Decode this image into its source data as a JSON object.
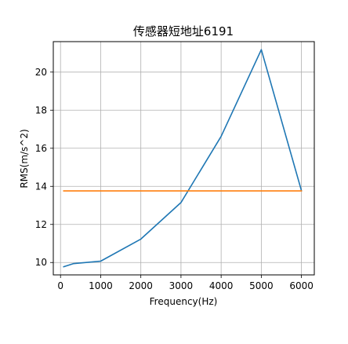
{
  "chart_data": {
    "type": "line",
    "title": "传感器短地址6191",
    "xlabel": "Frequency(Hz)",
    "ylabel": "RMS(m/s^2)",
    "xlim": [
      -180,
      6320
    ],
    "ylim": [
      9.35,
      21.6
    ],
    "xticks": [
      0,
      1000,
      2000,
      3000,
      4000,
      5000,
      6000
    ],
    "xtick_labels": [
      "0",
      "1000",
      "2000",
      "3000",
      "4000",
      "5000",
      "6000"
    ],
    "yticks": [
      10,
      12,
      14,
      16,
      18,
      20
    ],
    "ytick_labels": [
      "10",
      "12",
      "14",
      "16",
      "18",
      "20"
    ],
    "grid": true,
    "legend": "none",
    "series": [
      {
        "color": "#1f77b4",
        "x": [
          80,
          315,
          1000,
          2000,
          3000,
          4000,
          5000,
          6000
        ],
        "y": [
          9.78,
          9.94,
          10.07,
          11.23,
          13.15,
          16.62,
          21.18,
          13.77
        ]
      },
      {
        "color": "#ff7f0e",
        "x": [
          80,
          6000
        ],
        "y": [
          13.76,
          13.76
        ]
      }
    ]
  }
}
